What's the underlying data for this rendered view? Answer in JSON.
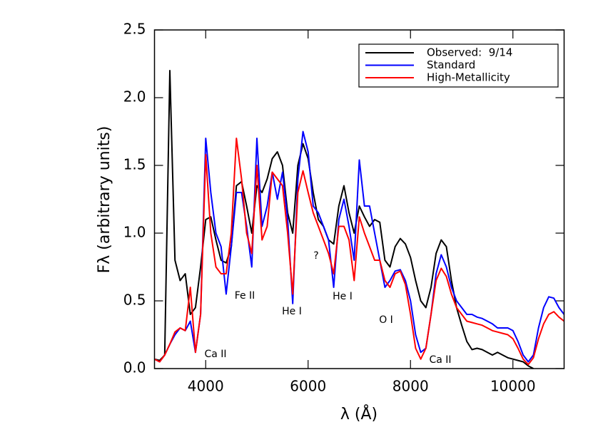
{
  "chart_data": {
    "type": "line",
    "xlabel": "λ (Å)",
    "ylabel": "Fλ (arbitrary units)",
    "xlim": [
      3000,
      11000
    ],
    "ylim": [
      0,
      2.5
    ],
    "xticks": [
      4000,
      6000,
      8000,
      10000
    ],
    "yticks": [
      {
        "value": 0,
        "label": "0.0"
      },
      0.5,
      {
        "value": 1,
        "label": "1.0"
      },
      1.5,
      {
        "value": 2,
        "label": "2.0"
      },
      2.5
    ],
    "legend": "upper right",
    "x": [
      3000,
      3100,
      3200,
      3300,
      3400,
      3500,
      3600,
      3700,
      3800,
      3900,
      4000,
      4100,
      4200,
      4300,
      4400,
      4500,
      4600,
      4700,
      4800,
      4900,
      5000,
      5100,
      5200,
      5300,
      5400,
      5500,
      5600,
      5700,
      5800,
      5900,
      6000,
      6100,
      6200,
      6300,
      6400,
      6500,
      6600,
      6700,
      6800,
      6900,
      7000,
      7100,
      7200,
      7300,
      7400,
      7500,
      7600,
      7700,
      7800,
      7900,
      8000,
      8100,
      8200,
      8300,
      8400,
      8500,
      8600,
      8700,
      8800,
      8900,
      9000,
      9100,
      9200,
      9300,
      9400,
      9500,
      9600,
      9700,
      9800,
      9900,
      10000,
      10100,
      10200,
      10300,
      10400,
      10500,
      10600,
      10700,
      10800,
      10900,
      11000
    ],
    "series": [
      {
        "name": "Observed:  9/14",
        "color": "#000000",
        "values": [
          0.07,
          0.06,
          0.1,
          2.2,
          0.8,
          0.65,
          0.7,
          0.4,
          0.45,
          0.75,
          1.1,
          1.12,
          0.95,
          0.8,
          0.78,
          0.9,
          1.35,
          1.38,
          1.2,
          1.0,
          1.35,
          1.3,
          1.4,
          1.55,
          1.6,
          1.5,
          1.15,
          1.0,
          1.5,
          1.66,
          1.55,
          1.3,
          1.1,
          1.05,
          0.95,
          0.92,
          1.2,
          1.35,
          1.15,
          1.0,
          1.2,
          1.12,
          1.05,
          1.1,
          1.08,
          0.8,
          0.75,
          0.9,
          0.96,
          0.92,
          0.82,
          0.65,
          0.5,
          0.45,
          0.6,
          0.85,
          0.95,
          0.9,
          0.65,
          0.45,
          0.32,
          0.2,
          0.14,
          0.15,
          0.14,
          0.12,
          0.1,
          0.12,
          0.1,
          0.08,
          0.07,
          0.06,
          0.05,
          0.02,
          0.0,
          null,
          null,
          null,
          null,
          null,
          null
        ]
      },
      {
        "name": "Standard",
        "color": "#0000ff",
        "values": [
          0.07,
          0.05,
          0.1,
          0.18,
          0.25,
          0.3,
          0.28,
          0.35,
          0.12,
          0.4,
          1.7,
          1.3,
          1.0,
          0.9,
          0.55,
          0.9,
          1.3,
          1.3,
          1.05,
          0.75,
          1.7,
          1.05,
          1.2,
          1.45,
          1.25,
          1.45,
          1.1,
          0.48,
          1.4,
          1.75,
          1.6,
          1.2,
          1.15,
          1.05,
          0.95,
          0.6,
          1.1,
          1.25,
          1.05,
          0.8,
          1.54,
          1.2,
          1.2,
          1.0,
          0.8,
          0.6,
          0.65,
          0.72,
          0.73,
          0.65,
          0.5,
          0.25,
          0.12,
          0.15,
          0.4,
          0.7,
          0.84,
          0.75,
          0.6,
          0.5,
          0.45,
          0.4,
          0.4,
          0.38,
          0.37,
          0.35,
          0.33,
          0.3,
          0.3,
          0.3,
          0.28,
          0.2,
          0.1,
          0.05,
          0.1,
          0.3,
          0.45,
          0.53,
          0.52,
          0.45,
          0.4
        ]
      },
      {
        "name": "High-Metallicity",
        "color": "#ff0000",
        "values": [
          0.07,
          0.05,
          0.1,
          0.18,
          0.27,
          0.3,
          0.28,
          0.6,
          0.12,
          0.4,
          1.58,
          1.0,
          0.75,
          0.7,
          0.7,
          1.0,
          1.7,
          1.4,
          1.0,
          0.85,
          1.5,
          0.95,
          1.05,
          1.45,
          1.4,
          1.35,
          1.0,
          0.55,
          1.3,
          1.46,
          1.3,
          1.15,
          1.05,
          0.95,
          0.85,
          0.7,
          1.05,
          1.05,
          0.95,
          0.65,
          1.12,
          1.0,
          0.9,
          0.8,
          0.8,
          0.65,
          0.6,
          0.7,
          0.72,
          0.62,
          0.4,
          0.15,
          0.07,
          0.15,
          0.4,
          0.65,
          0.74,
          0.68,
          0.55,
          0.45,
          0.4,
          0.35,
          0.34,
          0.33,
          0.32,
          0.3,
          0.28,
          0.27,
          0.26,
          0.25,
          0.22,
          0.15,
          0.07,
          0.03,
          0.08,
          0.22,
          0.33,
          0.4,
          0.42,
          0.38,
          0.35
        ]
      }
    ],
    "annotations": [
      "Ca II",
      "Fe II",
      "He I",
      "?",
      "He I",
      "O I",
      "Ca II"
    ]
  }
}
